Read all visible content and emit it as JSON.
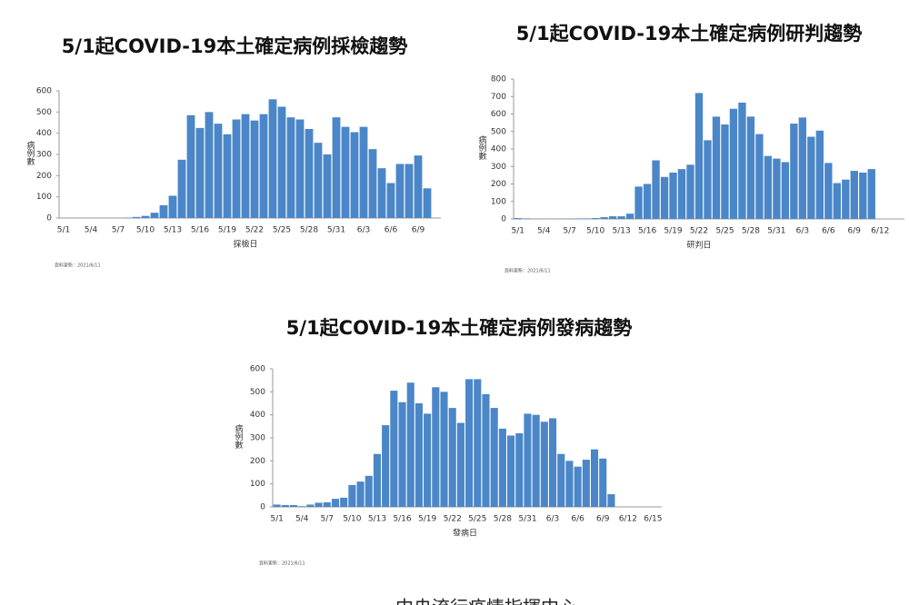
{
  "chart_data": [
    {
      "type": "bar",
      "title": "5/1起COVID-19本土確定病例採檢趨勢",
      "x_label": "採檢日",
      "y_label": "病例數",
      "note": "資料更新：2021/6/11",
      "color": "#4a86c8",
      "categories": [
        "5/1",
        null,
        null,
        "5/4",
        null,
        null,
        "5/7",
        null,
        null,
        "5/10",
        null,
        null,
        "5/13",
        null,
        null,
        "5/16",
        null,
        null,
        "5/19",
        null,
        null,
        "5/22",
        null,
        null,
        "5/25",
        null,
        null,
        "5/28",
        null,
        null,
        "5/31",
        null,
        null,
        "6/3",
        null,
        null,
        "6/6",
        null,
        null,
        "6/9",
        null
      ],
      "values": [
        0,
        0,
        0,
        0,
        0,
        0,
        0,
        2,
        5,
        10,
        25,
        60,
        105,
        275,
        485,
        425,
        500,
        445,
        395,
        465,
        490,
        460,
        490,
        560,
        525,
        475,
        465,
        420,
        355,
        300,
        475,
        430,
        405,
        430,
        325,
        235,
        165,
        255,
        255,
        295,
        140
      ],
      "ylim": [
        0,
        600
      ],
      "yticks": [
        0,
        100,
        200,
        300,
        400,
        500,
        600
      ]
    },
    {
      "type": "bar",
      "title": "5/1起COVID-19本土確定病例研判趨勢",
      "x_label": "研判日",
      "y_label": "病例數",
      "note": "資料更新：2021/6/11",
      "color": "#4a86c8",
      "categories": [
        "5/1",
        null,
        null,
        "5/4",
        null,
        null,
        "5/7",
        null,
        null,
        "5/10",
        null,
        null,
        "5/13",
        null,
        null,
        "5/16",
        null,
        null,
        "5/19",
        null,
        null,
        "5/22",
        null,
        null,
        "5/25",
        null,
        null,
        "5/28",
        null,
        null,
        "5/31",
        null,
        null,
        "6/3",
        null,
        null,
        "6/6",
        null,
        null,
        "6/9",
        null,
        null,
        "6/12"
      ],
      "values": [
        5,
        3,
        1,
        1,
        1,
        2,
        2,
        3,
        3,
        5,
        10,
        15,
        15,
        30,
        185,
        200,
        335,
        240,
        265,
        285,
        310,
        720,
        450,
        585,
        540,
        630,
        665,
        585,
        485,
        360,
        345,
        325,
        545,
        580,
        470,
        505,
        320,
        205,
        225,
        275,
        265,
        285,
        0
      ],
      "ylim": [
        0,
        800
      ],
      "yticks": [
        0,
        100,
        200,
        300,
        400,
        500,
        600,
        700,
        800
      ]
    },
    {
      "type": "bar",
      "title": "5/1起COVID-19本土確定病例發病趨勢",
      "x_label": "發病日",
      "y_label": "病例數",
      "note": "資料更新：2021/6/11",
      "color": "#4a86c8",
      "categories": [
        "5/1",
        null,
        null,
        "5/4",
        null,
        null,
        "5/7",
        null,
        null,
        "5/10",
        null,
        null,
        "5/13",
        null,
        null,
        "5/16",
        null,
        null,
        "5/19",
        null,
        null,
        "5/22",
        null,
        null,
        "5/25",
        null,
        null,
        "5/28",
        null,
        null,
        "5/31",
        null,
        null,
        "6/3",
        null,
        null,
        "6/6",
        null,
        null,
        "6/9",
        null,
        null,
        "6/12",
        null,
        null,
        "6/15"
      ],
      "values": [
        10,
        8,
        8,
        3,
        10,
        18,
        20,
        35,
        40,
        95,
        110,
        135,
        230,
        355,
        505,
        455,
        540,
        450,
        405,
        520,
        500,
        430,
        365,
        555,
        555,
        490,
        430,
        340,
        310,
        320,
        405,
        400,
        370,
        385,
        230,
        200,
        175,
        205,
        250,
        210,
        55,
        0,
        0,
        0,
        0,
        0
      ],
      "ylim": [
        0,
        600
      ],
      "yticks": [
        0,
        100,
        200,
        300,
        400,
        500,
        600
      ]
    }
  ],
  "footer": "中央流行疫情指揮中心"
}
